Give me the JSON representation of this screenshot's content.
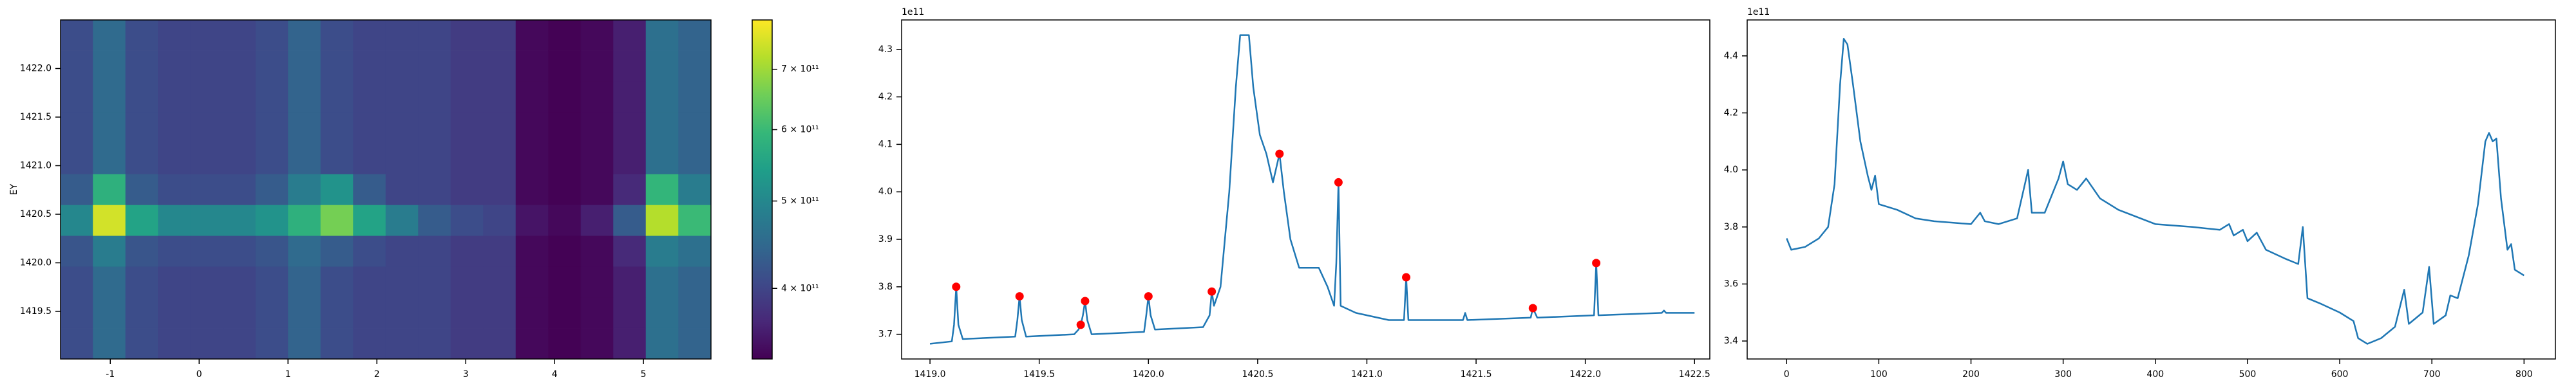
{
  "chart_data": [
    {
      "type": "heatmap",
      "ylabel": "EY",
      "colormap": "viridis",
      "xlim": [
        -1.56,
        5.76
      ],
      "ylim": [
        1419.01,
        1422.5
      ],
      "xticks": [
        -1,
        0,
        1,
        2,
        3,
        4,
        5
      ],
      "yticks": [
        1419.5,
        {
          "value": 1420,
          "label": "1420.0"
        },
        1420.5,
        {
          "value": 1421,
          "label": "1421.0"
        },
        1421.5,
        {
          "value": 1422,
          "label": "1422.0"
        }
      ],
      "z": [
        [
          410000000000.0,
          450000000000.0,
          410000000000.0,
          400000000000.0,
          400000000000.0,
          400000000000.0,
          410000000000.0,
          440000000000.0,
          410000000000.0,
          400000000000.0,
          400000000000.0,
          400000000000.0,
          390000000000.0,
          390000000000.0,
          340000000000.0,
          335000000000.0,
          340000000000.0,
          360000000000.0,
          460000000000.0,
          440000000000.0
        ],
        [
          410000000000.0,
          450000000000.0,
          410000000000.0,
          400000000000.0,
          400000000000.0,
          400000000000.0,
          410000000000.0,
          440000000000.0,
          410000000000.0,
          400000000000.0,
          400000000000.0,
          400000000000.0,
          390000000000.0,
          390000000000.0,
          340000000000.0,
          335000000000.0,
          340000000000.0,
          360000000000.0,
          460000000000.0,
          440000000000.0
        ],
        [
          410000000000.0,
          450000000000.0,
          410000000000.0,
          400000000000.0,
          400000000000.0,
          400000000000.0,
          410000000000.0,
          440000000000.0,
          410000000000.0,
          400000000000.0,
          400000000000.0,
          400000000000.0,
          390000000000.0,
          390000000000.0,
          340000000000.0,
          335000000000.0,
          340000000000.0,
          360000000000.0,
          460000000000.0,
          440000000000.0
        ],
        [
          420000000000.0,
          480000000000.0,
          420000000000.0,
          410000000000.0,
          410000000000.0,
          410000000000.0,
          420000000000.0,
          450000000000.0,
          430000000000.0,
          410000000000.0,
          400000000000.0,
          400000000000.0,
          390000000000.0,
          390000000000.0,
          340000000000.0,
          335000000000.0,
          340000000000.0,
          370000000000.0,
          480000000000.0,
          460000000000.0
        ],
        [
          500000000000.0,
          750000000000.0,
          550000000000.0,
          500000000000.0,
          500000000000.0,
          500000000000.0,
          520000000000.0,
          580000000000.0,
          660000000000.0,
          550000000000.0,
          480000000000.0,
          430000000000.0,
          410000000000.0,
          400000000000.0,
          350000000000.0,
          340000000000.0,
          360000000000.0,
          430000000000.0,
          720000000000.0,
          600000000000.0
        ],
        [
          430000000000.0,
          580000000000.0,
          430000000000.0,
          410000000000.0,
          410000000000.0,
          410000000000.0,
          430000000000.0,
          480000000000.0,
          520000000000.0,
          430000000000.0,
          400000000000.0,
          400000000000.0,
          390000000000.0,
          390000000000.0,
          340000000000.0,
          335000000000.0,
          340000000000.0,
          370000000000.0,
          590000000000.0,
          480000000000.0
        ],
        [
          410000000000.0,
          450000000000.0,
          410000000000.0,
          400000000000.0,
          400000000000.0,
          400000000000.0,
          410000000000.0,
          440000000000.0,
          410000000000.0,
          400000000000.0,
          400000000000.0,
          400000000000.0,
          390000000000.0,
          390000000000.0,
          340000000000.0,
          335000000000.0,
          340000000000.0,
          360000000000.0,
          460000000000.0,
          440000000000.0
        ],
        [
          410000000000.0,
          450000000000.0,
          410000000000.0,
          400000000000.0,
          400000000000.0,
          400000000000.0,
          410000000000.0,
          440000000000.0,
          410000000000.0,
          400000000000.0,
          400000000000.0,
          400000000000.0,
          390000000000.0,
          390000000000.0,
          340000000000.0,
          335000000000.0,
          340000000000.0,
          360000000000.0,
          460000000000.0,
          440000000000.0
        ],
        [
          410000000000.0,
          450000000000.0,
          410000000000.0,
          400000000000.0,
          400000000000.0,
          400000000000.0,
          410000000000.0,
          440000000000.0,
          410000000000.0,
          400000000000.0,
          400000000000.0,
          400000000000.0,
          390000000000.0,
          390000000000.0,
          340000000000.0,
          335000000000.0,
          340000000000.0,
          360000000000.0,
          460000000000.0,
          440000000000.0
        ],
        [
          410000000000.0,
          450000000000.0,
          410000000000.0,
          400000000000.0,
          400000000000.0,
          400000000000.0,
          410000000000.0,
          440000000000.0,
          410000000000.0,
          400000000000.0,
          400000000000.0,
          400000000000.0,
          390000000000.0,
          390000000000.0,
          340000000000.0,
          335000000000.0,
          340000000000.0,
          360000000000.0,
          460000000000.0,
          440000000000.0
        ],
        [
          410000000000.0,
          450000000000.0,
          410000000000.0,
          400000000000.0,
          400000000000.0,
          400000000000.0,
          410000000000.0,
          440000000000.0,
          410000000000.0,
          400000000000.0,
          400000000000.0,
          400000000000.0,
          390000000000.0,
          390000000000.0,
          340000000000.0,
          335000000000.0,
          340000000000.0,
          360000000000.0,
          460000000000.0,
          440000000000.0
        ]
      ],
      "colorbar": {
        "scale": "log",
        "lim": [
          334000000000.0,
          794000000000.0
        ],
        "ticks": [
          {
            "value": 400000000000.0,
            "label": "4 × 10¹¹"
          },
          {
            "value": 500000000000.0,
            "label": "5 × 10¹¹"
          },
          {
            "value": 600000000000.0,
            "label": "6 × 10¹¹"
          },
          {
            "value": 700000000000.0,
            "label": "7 × 10¹¹"
          }
        ]
      }
    },
    {
      "type": "line",
      "y_offset_label": "1e11",
      "xlim": [
        1418.87,
        1422.57
      ],
      "ylim": [
        3.648,
        4.362
      ],
      "xticks": [
        {
          "value": 1419,
          "label": "1419.0"
        },
        1419.5,
        {
          "value": 1420,
          "label": "1420.0"
        },
        1420.5,
        {
          "value": 1421,
          "label": "1421.0"
        },
        1421.5,
        {
          "value": 1422,
          "label": "1422.0"
        },
        1422.5
      ],
      "yticks": [
        3.7,
        3.8,
        3.9,
        {
          "value": 4,
          "label": "4.0"
        },
        4.1,
        4.2,
        4.3
      ],
      "series": [
        {
          "color": "#1f77b4",
          "line": true,
          "x": [
            1419.0,
            1419.1,
            1419.11,
            1419.12,
            1419.13,
            1419.15,
            1419.39,
            1419.4,
            1419.41,
            1419.42,
            1419.44,
            1419.66,
            1419.68,
            1419.69,
            1419.7,
            1419.71,
            1419.72,
            1419.74,
            1419.98,
            1419.99,
            1420.0,
            1420.01,
            1420.03,
            1420.25,
            1420.28,
            1420.29,
            1420.3,
            1420.33,
            1420.37,
            1420.4,
            1420.42,
            1420.46,
            1420.48,
            1420.51,
            1420.54,
            1420.57,
            1420.6,
            1420.62,
            1420.65,
            1420.69,
            1420.74,
            1420.78,
            1420.82,
            1420.85,
            1420.86,
            1420.87,
            1420.88,
            1420.95,
            1421.1,
            1421.17,
            1421.18,
            1421.19,
            1421.44,
            1421.45,
            1421.46,
            1421.75,
            1421.76,
            1421.78,
            1422.04,
            1422.05,
            1422.06,
            1422.35,
            1422.36,
            1422.37,
            1422.5
          ],
          "values": [
            3.68,
            3.685,
            3.72,
            3.8,
            3.72,
            3.69,
            3.695,
            3.73,
            3.78,
            3.73,
            3.695,
            3.7,
            3.71,
            3.72,
            3.74,
            3.77,
            3.73,
            3.7,
            3.705,
            3.74,
            3.78,
            3.74,
            3.71,
            3.715,
            3.74,
            3.79,
            3.76,
            3.8,
            4.0,
            4.22,
            4.33,
            4.33,
            4.22,
            4.12,
            4.08,
            4.02,
            4.08,
            4.0,
            3.9,
            3.84,
            3.84,
            3.84,
            3.8,
            3.76,
            3.85,
            4.02,
            3.76,
            3.745,
            3.73,
            3.73,
            3.82,
            3.73,
            3.73,
            3.745,
            3.73,
            3.735,
            3.755,
            3.735,
            3.74,
            3.85,
            3.74,
            3.745,
            3.75,
            3.745,
            3.745
          ]
        },
        {
          "color": "#ff0000",
          "line": false,
          "marker": "o",
          "x": [
            1419.12,
            1419.41,
            1419.69,
            1419.71,
            1420.0,
            1420.29,
            1420.6,
            1420.87,
            1421.18,
            1421.76,
            1422.05
          ],
          "values": [
            3.8,
            3.78,
            3.72,
            3.77,
            3.78,
            3.79,
            4.08,
            4.02,
            3.82,
            3.755,
            3.85
          ]
        }
      ]
    },
    {
      "type": "line",
      "y_offset_label": "1e11",
      "xlim": [
        -42.8,
        834
      ],
      "ylim": [
        3.337,
        4.526
      ],
      "xticks": [
        0,
        100,
        200,
        300,
        400,
        500,
        600,
        700,
        800
      ],
      "yticks": [
        3.4,
        3.6,
        3.8,
        {
          "value": 4,
          "label": "4.0"
        },
        4.2,
        4.4
      ],
      "series": [
        {
          "color": "#1f77b4",
          "line": true,
          "x": [
            0,
            5,
            20,
            35,
            45,
            52,
            58,
            62,
            66,
            72,
            80,
            88,
            92,
            96,
            100,
            120,
            140,
            160,
            200,
            210,
            215,
            230,
            250,
            262,
            266,
            280,
            295,
            300,
            305,
            315,
            325,
            340,
            360,
            400,
            440,
            470,
            480,
            485,
            495,
            500,
            510,
            520,
            540,
            555,
            560,
            565,
            580,
            600,
            615,
            620,
            630,
            645,
            660,
            670,
            675,
            690,
            697,
            702,
            715,
            720,
            728,
            740,
            750,
            758,
            762,
            766,
            770,
            775,
            782,
            786,
            790,
            800
          ],
          "values": [
            3.76,
            3.72,
            3.73,
            3.76,
            3.8,
            3.95,
            4.3,
            4.46,
            4.44,
            4.3,
            4.1,
            3.98,
            3.93,
            3.98,
            3.88,
            3.86,
            3.83,
            3.82,
            3.81,
            3.85,
            3.82,
            3.81,
            3.83,
            4.0,
            3.85,
            3.85,
            3.97,
            4.03,
            3.95,
            3.93,
            3.97,
            3.9,
            3.86,
            3.81,
            3.8,
            3.79,
            3.81,
            3.77,
            3.79,
            3.75,
            3.78,
            3.72,
            3.69,
            3.67,
            3.8,
            3.55,
            3.53,
            3.5,
            3.47,
            3.41,
            3.39,
            3.41,
            3.45,
            3.58,
            3.46,
            3.5,
            3.66,
            3.46,
            3.49,
            3.56,
            3.55,
            3.7,
            3.88,
            4.1,
            4.13,
            4.1,
            4.11,
            3.9,
            3.72,
            3.74,
            3.65,
            3.63
          ]
        }
      ]
    }
  ]
}
